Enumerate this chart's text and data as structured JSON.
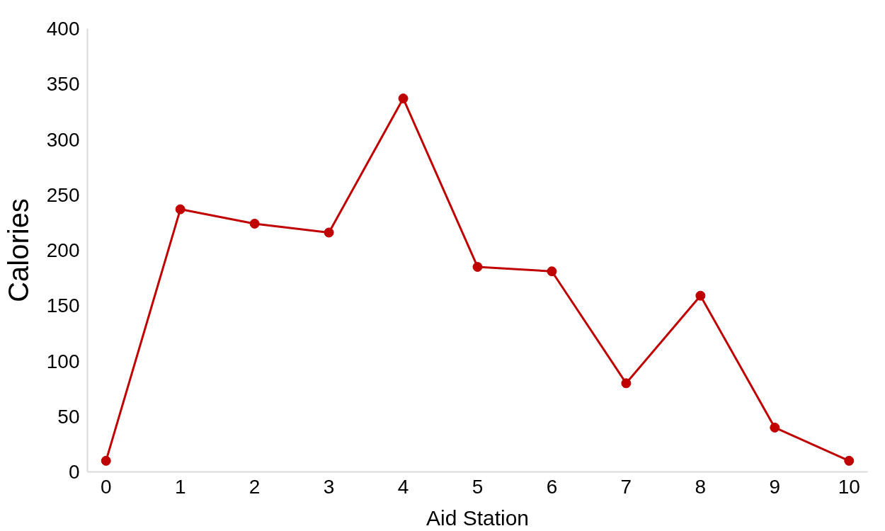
{
  "chart_data": {
    "type": "line",
    "xlabel": "Aid Station",
    "ylabel": "Calories",
    "categories": [
      "0",
      "1",
      "2",
      "3",
      "4",
      "5",
      "6",
      "7",
      "8",
      "9",
      "10"
    ],
    "series": [
      {
        "color": "#c00000",
        "values": [
          10,
          237,
          224,
          216,
          337,
          185,
          181,
          80,
          159,
          40,
          10
        ]
      }
    ],
    "ylim": [
      0,
      400
    ],
    "yticks": [
      0,
      50,
      100,
      150,
      200,
      250,
      300,
      350,
      400
    ],
    "grid": false,
    "marker": "circle",
    "line_style": "solid"
  }
}
